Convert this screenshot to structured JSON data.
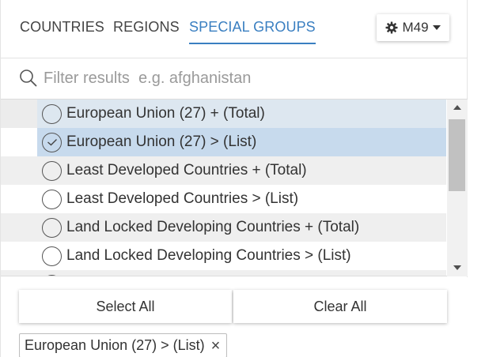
{
  "tabs": [
    {
      "label": "COUNTRIES",
      "active": false
    },
    {
      "label": "REGIONS",
      "active": false
    },
    {
      "label": "SPECIAL GROUPS",
      "active": true
    }
  ],
  "settings_button": {
    "label": "M49",
    "icon": "gear-icon",
    "caret": "caret-down-icon"
  },
  "search": {
    "value": "",
    "placeholder": "Filter results  e.g. afghanistan",
    "icon": "search-icon"
  },
  "items": [
    {
      "label": "European Union (27) + (Total)",
      "selected": false
    },
    {
      "label": "European Union (27) > (List)",
      "selected": true
    },
    {
      "label": "Least Developed Countries + (Total)",
      "selected": false
    },
    {
      "label": "Least Developed Countries > (List)",
      "selected": false
    },
    {
      "label": "Land Locked Developing Countries + (Total)",
      "selected": false
    },
    {
      "label": "Land Locked Developing Countries > (List)",
      "selected": false
    }
  ],
  "actions": {
    "select_all": "Select All",
    "clear_all": "Clear All"
  },
  "selected_chips": [
    {
      "label": "European Union (27) > (List)",
      "remove": "×"
    }
  ],
  "colors": {
    "accent": "#3a7fc1",
    "row_highlight": "#dde7f0",
    "row_selected": "#c7daed",
    "row_alt": "#efefef"
  }
}
